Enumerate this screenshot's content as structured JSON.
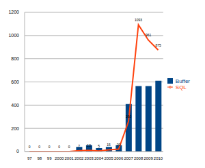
{
  "chart_data": {
    "type": "bar",
    "categories": [
      "97",
      "98",
      "99",
      "2000",
      "2001",
      "2002",
      "2003",
      "2004",
      "2005",
      "2006",
      "2007",
      "2008",
      "2009",
      "2010"
    ],
    "series": [
      {
        "name": "Buffer",
        "type": "bar",
        "color": "#004586",
        "values": [
          0,
          0,
          0,
          0,
          0,
          40,
          55,
          30,
          40,
          55,
          410,
          565,
          565,
          610
        ]
      },
      {
        "name": "SQL",
        "type": "line",
        "color": "#ff420e",
        "data_labels": true,
        "values": [
          0,
          0,
          0,
          0,
          0,
          7,
          10,
          5,
          15,
          20,
          260,
          1093,
          961,
          875
        ]
      }
    ],
    "ylim": [
      0,
      1200
    ],
    "yticks": [
      0,
      200,
      400,
      600,
      800,
      1000,
      1200
    ],
    "grid": true,
    "legend": "right"
  }
}
